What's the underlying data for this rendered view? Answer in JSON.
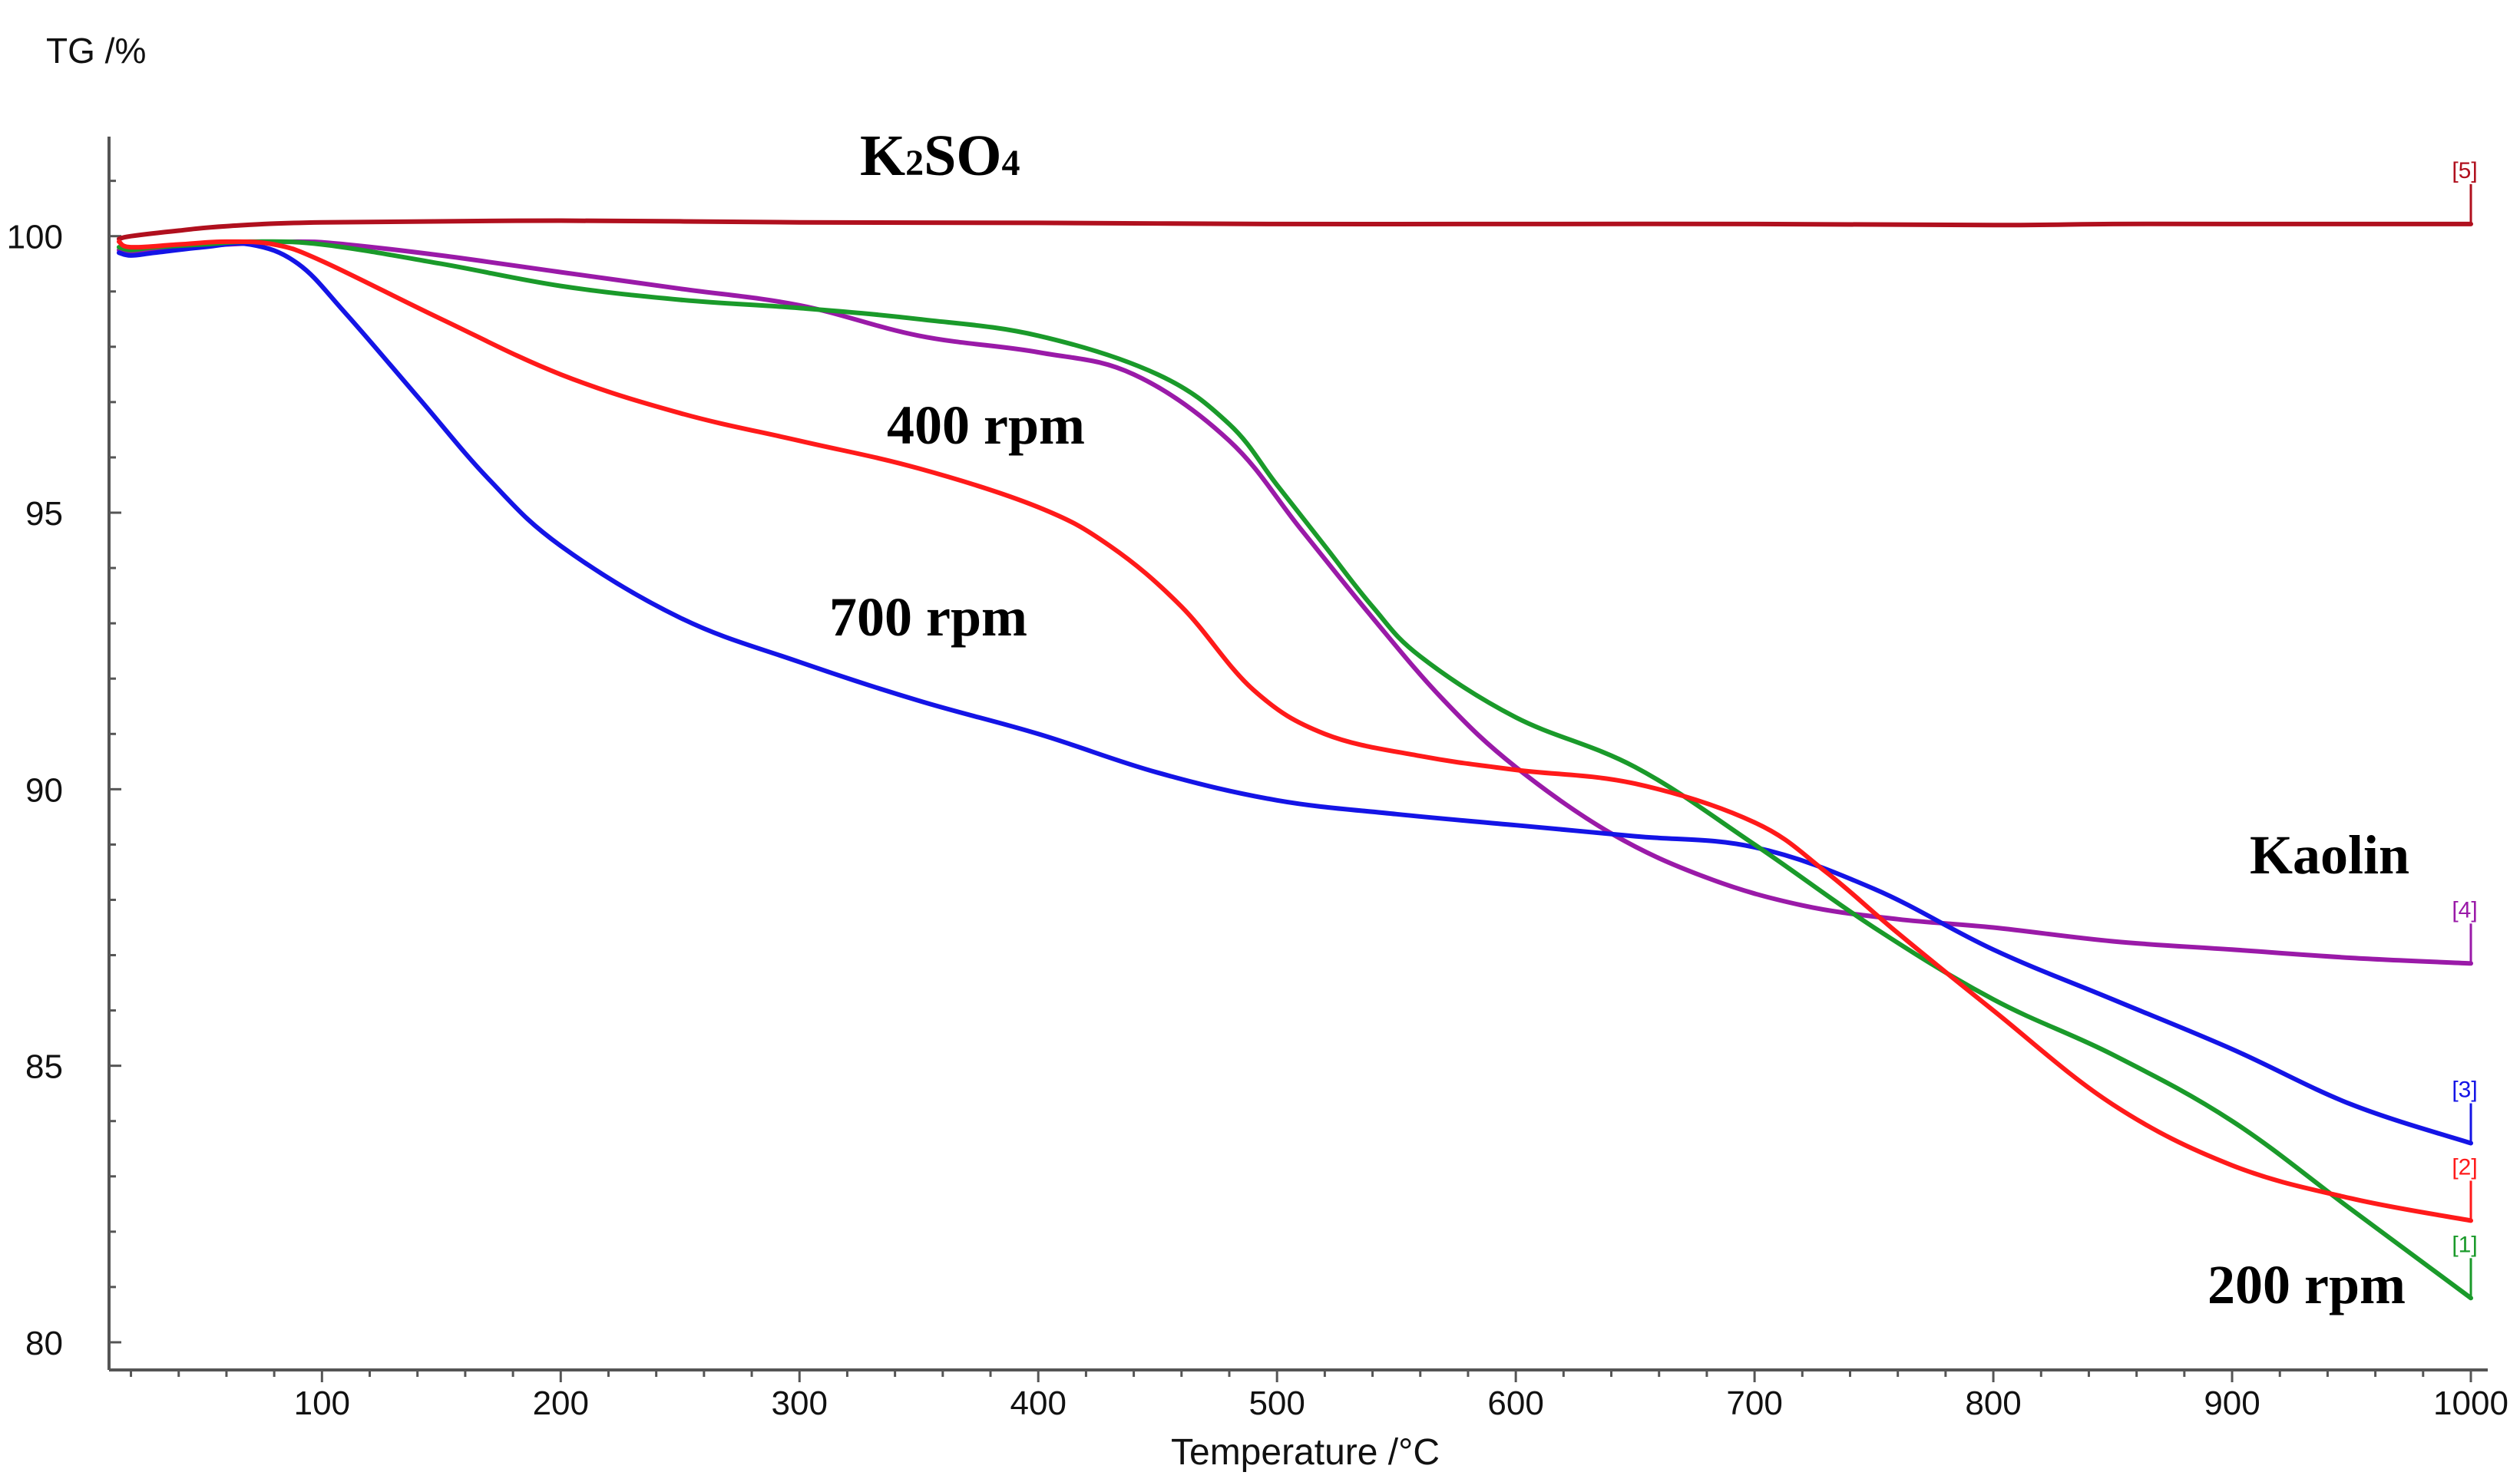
{
  "chart_data": {
    "type": "line",
    "title": "",
    "ylabel": "TG /%",
    "xlabel": "Temperature /°C",
    "xlim": [
      15,
      1000
    ],
    "ylim": [
      79.5,
      101.8
    ],
    "xticks": [
      100,
      200,
      300,
      400,
      500,
      600,
      700,
      800,
      900,
      1000
    ],
    "yticks": [
      80,
      85,
      90,
      95,
      100
    ],
    "grid": false,
    "annotations": [
      {
        "text_main": "K",
        "text_sub1": "2",
        "text_mid": "SO",
        "text_sub2": "4",
        "series_tag": "[5]"
      },
      {
        "text": "400 rpm"
      },
      {
        "text": "700 rpm"
      },
      {
        "text": "Kaolin"
      },
      {
        "text": "200 rpm"
      }
    ],
    "series": [
      {
        "tag": "[1]",
        "name": "200 rpm",
        "color": "#1a9a2a",
        "x": [
          15,
          20,
          30,
          50,
          70,
          100,
          150,
          200,
          250,
          300,
          350,
          400,
          450,
          480,
          500,
          520,
          540,
          560,
          600,
          650,
          700,
          750,
          800,
          850,
          900,
          950,
          1000
        ],
        "y": [
          99.8,
          99.75,
          99.8,
          99.85,
          99.9,
          99.85,
          99.5,
          99.1,
          98.85,
          98.7,
          98.5,
          98.2,
          97.5,
          96.6,
          95.5,
          94.4,
          93.3,
          92.4,
          91.3,
          90.4,
          89.0,
          87.5,
          86.2,
          85.2,
          84.0,
          82.4,
          80.8
        ]
      },
      {
        "tag": "[2]",
        "name": "400 rpm",
        "color": "#ff1a1a",
        "x": [
          15,
          20,
          40,
          60,
          80,
          100,
          150,
          200,
          250,
          300,
          350,
          400,
          430,
          460,
          490,
          520,
          560,
          600,
          650,
          700,
          730,
          760,
          800,
          850,
          900,
          950,
          1000
        ],
        "y": [
          99.9,
          99.8,
          99.85,
          99.9,
          99.85,
          99.55,
          98.5,
          97.5,
          96.8,
          96.3,
          95.8,
          95.1,
          94.4,
          93.3,
          91.8,
          91.0,
          90.6,
          90.35,
          90.1,
          89.4,
          88.5,
          87.4,
          86.0,
          84.3,
          83.2,
          82.6,
          82.2
        ]
      },
      {
        "tag": "[3]",
        "name": "700 rpm",
        "color": "#1414e6",
        "x": [
          15,
          20,
          30,
          50,
          70,
          90,
          110,
          140,
          170,
          200,
          250,
          300,
          350,
          400,
          450,
          500,
          550,
          600,
          650,
          700,
          750,
          800,
          850,
          900,
          950,
          1000
        ],
        "y": [
          99.7,
          99.65,
          99.7,
          99.8,
          99.85,
          99.5,
          98.6,
          97.1,
          95.6,
          94.4,
          93.1,
          92.3,
          91.6,
          91.0,
          90.3,
          89.8,
          89.55,
          89.35,
          89.15,
          88.95,
          88.2,
          87.1,
          86.2,
          85.3,
          84.3,
          83.6
        ]
      },
      {
        "tag": "[4]",
        "name": "Kaolin",
        "color": "#9a1aa8",
        "x": [
          15,
          20,
          40,
          60,
          90,
          110,
          150,
          200,
          250,
          300,
          350,
          400,
          440,
          480,
          510,
          540,
          570,
          600,
          640,
          680,
          720,
          760,
          800,
          850,
          900,
          950,
          1000
        ],
        "y": [
          99.75,
          99.7,
          99.8,
          99.85,
          99.9,
          99.85,
          99.65,
          99.35,
          99.05,
          98.75,
          98.2,
          97.9,
          97.5,
          96.3,
          94.7,
          93.1,
          91.6,
          90.4,
          89.2,
          88.4,
          87.9,
          87.65,
          87.5,
          87.25,
          87.1,
          86.95,
          86.85
        ]
      },
      {
        "tag": "[5]",
        "name": "K2SO4",
        "color": "#b0101e",
        "x": [
          15,
          20,
          40,
          60,
          100,
          200,
          300,
          400,
          500,
          600,
          700,
          800,
          850,
          900,
          1000
        ],
        "y": [
          99.95,
          100.0,
          100.1,
          100.18,
          100.25,
          100.28,
          100.25,
          100.24,
          100.22,
          100.22,
          100.22,
          100.2,
          100.22,
          100.22,
          100.22
        ]
      }
    ]
  }
}
